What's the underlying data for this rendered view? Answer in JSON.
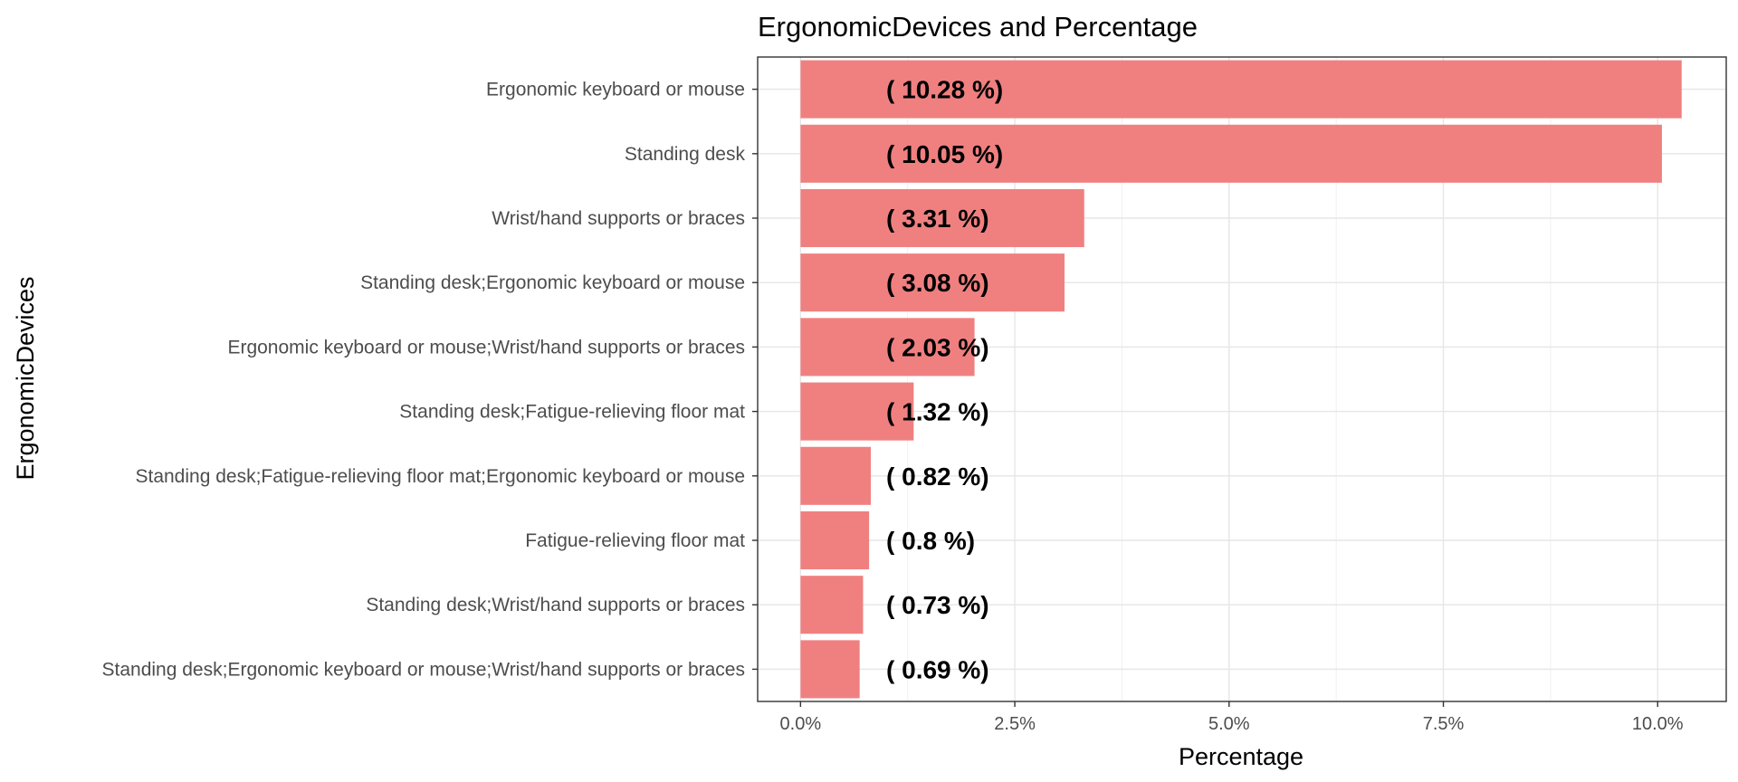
{
  "chart_data": {
    "type": "bar",
    "orientation": "horizontal",
    "title": "ErgonomicDevices and Percentage",
    "xlabel": "Percentage",
    "ylabel": "ErgonomicDevices",
    "categories": [
      "Ergonomic keyboard or mouse",
      "Standing desk",
      "Wrist/hand supports or braces",
      "Standing desk;Ergonomic keyboard or mouse",
      "Ergonomic keyboard or mouse;Wrist/hand supports or braces",
      "Standing desk;Fatigue-relieving floor mat",
      "Standing desk;Fatigue-relieving floor mat;Ergonomic keyboard or mouse",
      "Fatigue-relieving floor mat",
      "Standing desk;Wrist/hand supports or braces",
      "Standing desk;Ergonomic keyboard or mouse;Wrist/hand supports or braces"
    ],
    "values": [
      10.28,
      10.05,
      3.31,
      3.08,
      2.03,
      1.32,
      0.82,
      0.8,
      0.73,
      0.69
    ],
    "data_labels": [
      "( 10.28 %)",
      "( 10.05 %)",
      "( 3.31 %)",
      "( 3.08 %)",
      "( 2.03 %)",
      "( 1.32 %)",
      "( 0.82 %)",
      "( 0.8 %)",
      "( 0.73 %)",
      "( 0.69 %)"
    ],
    "label_anchor_value": 1.0,
    "xlim": [
      -0.5,
      10.8
    ],
    "xticks": [
      0,
      2.5,
      5,
      7.5,
      10
    ],
    "xtick_labels": [
      "0.0%",
      "2.5%",
      "5.0%",
      "7.5%",
      "10.0%"
    ],
    "bar_color": "#f08080",
    "grid": true,
    "legend": "none"
  }
}
